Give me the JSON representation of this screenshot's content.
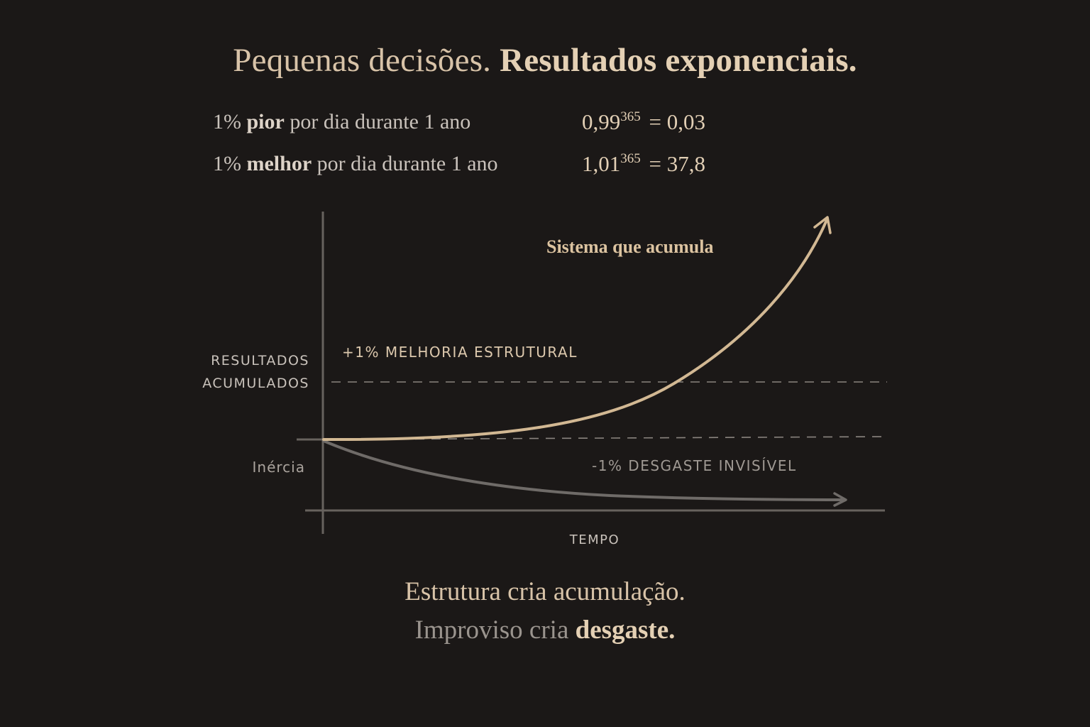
{
  "title": {
    "part1": "Pequenas decisões.",
    "part2": "Resultados exponenciais."
  },
  "equations": [
    {
      "prefix": "1%",
      "keyword": "pior",
      "suffix": "por dia durante 1 ano",
      "base": "0,99",
      "exponent": "365",
      "result": "= 0,03"
    },
    {
      "prefix": "1%",
      "keyword": "melhor",
      "suffix": "por dia durante 1 ano",
      "base": "1,01",
      "exponent": "365",
      "result": "= 37,8"
    }
  ],
  "diagram": {
    "y_axis_label_line1": "RESULTADOS",
    "y_axis_label_line2": "ACUMULADOS",
    "baseline_label": "Inércia",
    "x_axis_label": "TEMPO",
    "growth_curve_label": "Sistema que acumula",
    "growth_annotation": "+1% MELHORIA ESTRUTURAL",
    "decline_annotation": "-1% DESGASTE INVISÍVEL",
    "colors": {
      "growth": "#d2b893",
      "decline": "#6f6b68",
      "axis": "#67625e"
    }
  },
  "footer": {
    "line1": "Estrutura cria acumulação.",
    "line2_plain": "Improviso cria",
    "line2_bold": "desgaste."
  }
}
